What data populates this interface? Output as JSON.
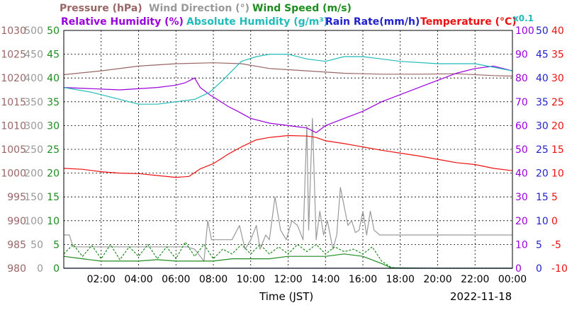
{
  "legend": {
    "row1": [
      {
        "text": "Pressure (hPa)",
        "color": "#996666"
      },
      {
        "text": "Wind Direction (°)",
        "color": "#999999"
      },
      {
        "text": "Wind Speed (m/s)",
        "color": "#1e8c1e"
      }
    ],
    "row2": [
      {
        "text": "Relative Humidity (%)",
        "color": "#9900dd"
      },
      {
        "text": "Absolute Humidity (g/m³)",
        "color": "#22bbbb"
      },
      {
        "text": "Rain Rate(mm/h)",
        "color": "#2222cc"
      },
      {
        "text": "Temperature (°C)",
        "color": "#ee1111"
      }
    ],
    "scale_note": {
      "text": "x0.1",
      "color": "#22bbbb"
    }
  },
  "footer": {
    "xlabel": "Time (JST)",
    "date": "2022-11-18"
  },
  "chart_data": {
    "type": "line",
    "x_ticks": [
      "02:00",
      "04:00",
      "06:00",
      "08:00",
      "10:00",
      "12:00",
      "14:00",
      "16:00",
      "18:00",
      "20:00",
      "22:00",
      "00:00"
    ],
    "x_range_hours": [
      0,
      24
    ],
    "grid": true,
    "axes": {
      "pressure": {
        "ticks": [
          "1030",
          "1025",
          "1020",
          "1015",
          "1010",
          "1005",
          "1000",
          "995",
          "990",
          "985",
          "980"
        ],
        "range": [
          980,
          1030
        ],
        "color": "#996666"
      },
      "wind_direction": {
        "ticks": [
          "500",
          "450",
          "400",
          "350",
          "300",
          "250",
          "200",
          "150",
          "100",
          "50",
          "0"
        ],
        "range": [
          0,
          500
        ],
        "color": "#999999"
      },
      "wind_speed": {
        "ticks": [
          "50",
          "45",
          "40",
          "35",
          "30",
          "25",
          "20",
          "15",
          "10",
          "5",
          "0"
        ],
        "range": [
          0,
          50
        ],
        "color": "#1e8c1e"
      },
      "humidity": {
        "ticks": [
          "100",
          "90",
          "80",
          "70",
          "60",
          "50",
          "40",
          "30",
          "20",
          "10",
          "0"
        ],
        "range": [
          0,
          100
        ],
        "color": "#9900dd"
      },
      "rain_rate": {
        "ticks": [
          "50",
          "45",
          "40",
          "35",
          "30",
          "25",
          "20",
          "15",
          "10",
          "5",
          "0"
        ],
        "range": [
          0,
          50
        ],
        "color": "#2222cc"
      },
      "temperature": {
        "ticks": [
          "40",
          "35",
          "30",
          "25",
          "20",
          "15",
          "10",
          "5",
          "0",
          "-5",
          "-10"
        ],
        "range": [
          -10,
          40
        ],
        "color": "#ee1111"
      }
    },
    "series": [
      {
        "name": "Pressure (hPa)",
        "axis": "pressure",
        "color": "#996666",
        "points": [
          [
            0,
            1020.7
          ],
          [
            2,
            1021.5
          ],
          [
            4,
            1022.5
          ],
          [
            6,
            1023.0
          ],
          [
            8,
            1023.2
          ],
          [
            9.5,
            1023.0
          ],
          [
            11,
            1022.0
          ],
          [
            13,
            1021.5
          ],
          [
            15,
            1021.0
          ],
          [
            17,
            1020.8
          ],
          [
            19,
            1020.8
          ],
          [
            21,
            1020.9
          ],
          [
            23,
            1020.5
          ],
          [
            24,
            1020.4
          ]
        ]
      },
      {
        "name": "Wind Direction (°)",
        "axis": "wind_direction",
        "color": "#999999",
        "points": [
          [
            0,
            70
          ],
          [
            0.3,
            70
          ],
          [
            0.5,
            45
          ],
          [
            2,
            45
          ],
          [
            4,
            45
          ],
          [
            6,
            45
          ],
          [
            6.6,
            45
          ],
          [
            7,
            40
          ],
          [
            7.5,
            15
          ],
          [
            7.7,
            100
          ],
          [
            7.9,
            60
          ],
          [
            8.5,
            60
          ],
          [
            9,
            60
          ],
          [
            9.4,
            90
          ],
          [
            9.7,
            40
          ],
          [
            10.0,
            60
          ],
          [
            10.3,
            90
          ],
          [
            10.5,
            40
          ],
          [
            10.8,
            70
          ],
          [
            11.0,
            60
          ],
          [
            11.3,
            150
          ],
          [
            11.6,
            80
          ],
          [
            11.9,
            60
          ],
          [
            12.2,
            100
          ],
          [
            12.5,
            90
          ],
          [
            12.8,
            60
          ],
          [
            13.0,
            300
          ],
          [
            13.1,
            80
          ],
          [
            13.3,
            315
          ],
          [
            13.5,
            60
          ],
          [
            13.7,
            120
          ],
          [
            13.9,
            70
          ],
          [
            14.1,
            100
          ],
          [
            14.4,
            40
          ],
          [
            14.6,
            70
          ],
          [
            14.8,
            170
          ],
          [
            15.0,
            130
          ],
          [
            15.2,
            90
          ],
          [
            15.4,
            100
          ],
          [
            15.6,
            75
          ],
          [
            15.8,
            80
          ],
          [
            16.0,
            120
          ],
          [
            16.2,
            70
          ],
          [
            16.4,
            120
          ],
          [
            16.6,
            80
          ],
          [
            16.9,
            70
          ],
          [
            17.2,
            70
          ],
          [
            18,
            70
          ],
          [
            20,
            70
          ],
          [
            22,
            70
          ],
          [
            24,
            70
          ]
        ]
      },
      {
        "name": "Wind Speed (m/s)",
        "axis": "wind_speed",
        "color": "#1e8c1e",
        "style": "solid",
        "points": [
          [
            0,
            2.5
          ],
          [
            1,
            2.0
          ],
          [
            2,
            1.5
          ],
          [
            3,
            1.5
          ],
          [
            4,
            1.5
          ],
          [
            5,
            1.8
          ],
          [
            6,
            1.5
          ],
          [
            7,
            1.5
          ],
          [
            8,
            1.5
          ],
          [
            9,
            2
          ],
          [
            10,
            2
          ],
          [
            11,
            2
          ],
          [
            12,
            2.5
          ],
          [
            13,
            2.5
          ],
          [
            14,
            2.5
          ],
          [
            15,
            3
          ],
          [
            16,
            2.5
          ],
          [
            17,
            1.0
          ],
          [
            17.5,
            0.1
          ],
          [
            20,
            0
          ],
          [
            24,
            0
          ]
        ]
      },
      {
        "name": "Wind Speed gust (m/s)",
        "axis": "wind_speed",
        "color": "#1e8c1e",
        "style": "dashed",
        "points": [
          [
            0,
            3
          ],
          [
            0.5,
            5
          ],
          [
            1,
            2.5
          ],
          [
            1.5,
            4.8
          ],
          [
            2,
            2
          ],
          [
            2.5,
            5
          ],
          [
            3,
            1.8
          ],
          [
            3.5,
            4.5
          ],
          [
            4,
            2.5
          ],
          [
            4.5,
            5
          ],
          [
            5,
            2
          ],
          [
            5.5,
            4.5
          ],
          [
            6,
            2
          ],
          [
            6.5,
            5.5
          ],
          [
            7,
            2.5
          ],
          [
            7.5,
            5
          ],
          [
            8,
            2
          ],
          [
            8.5,
            4
          ],
          [
            9,
            3
          ],
          [
            9.5,
            5
          ],
          [
            10,
            3
          ],
          [
            10.5,
            5
          ],
          [
            11,
            3
          ],
          [
            11.5,
            4.5
          ],
          [
            12,
            3
          ],
          [
            12.5,
            5
          ],
          [
            13,
            3.5
          ],
          [
            13.5,
            5
          ],
          [
            14,
            3
          ],
          [
            14.5,
            4.5
          ],
          [
            15,
            3.5
          ],
          [
            15.5,
            4
          ],
          [
            16,
            3
          ],
          [
            16.5,
            4.5
          ],
          [
            17,
            1.5
          ],
          [
            17.5,
            0.2
          ],
          [
            18,
            0
          ],
          [
            24,
            0
          ]
        ]
      },
      {
        "name": "Relative Humidity (%)",
        "axis": "humidity",
        "color": "#9900dd",
        "points": [
          [
            0,
            76
          ],
          [
            3,
            75
          ],
          [
            5,
            76
          ],
          [
            6,
            77
          ],
          [
            6.5,
            78
          ],
          [
            7,
            80
          ],
          [
            7.3,
            76
          ],
          [
            7.8,
            73
          ],
          [
            8.2,
            71
          ],
          [
            8.8,
            68
          ],
          [
            9.3,
            66
          ],
          [
            10.0,
            63
          ],
          [
            11.0,
            61
          ],
          [
            12,
            60
          ],
          [
            13,
            59
          ],
          [
            13.5,
            57
          ],
          [
            14,
            60
          ],
          [
            15,
            63
          ],
          [
            16,
            66
          ],
          [
            17,
            70
          ],
          [
            18,
            73
          ],
          [
            19,
            76
          ],
          [
            20,
            79
          ],
          [
            21,
            82
          ],
          [
            22,
            84
          ],
          [
            23,
            85
          ],
          [
            24,
            83
          ]
        ]
      },
      {
        "name": "Absolute Humidity (g/m³)",
        "axis": "humidity",
        "color": "#22bbbb",
        "points": [
          [
            0,
            76
          ],
          [
            1.5,
            74
          ],
          [
            3,
            71
          ],
          [
            4,
            69
          ],
          [
            5,
            69
          ],
          [
            6,
            70
          ],
          [
            7,
            71
          ],
          [
            7.8,
            74
          ],
          [
            8.5,
            79
          ],
          [
            9.0,
            83
          ],
          [
            9.5,
            87
          ],
          [
            10.3,
            89
          ],
          [
            11,
            90
          ],
          [
            12,
            90
          ],
          [
            13,
            88
          ],
          [
            14,
            87
          ],
          [
            15,
            89
          ],
          [
            16,
            89
          ],
          [
            17,
            88
          ],
          [
            18,
            87
          ],
          [
            20,
            86
          ],
          [
            22,
            86
          ],
          [
            24,
            83
          ]
        ]
      },
      {
        "name": "Rain Rate(mm/h)",
        "axis": "rain_rate",
        "color": "#2222cc",
        "points": [
          [
            0,
            0
          ],
          [
            24,
            0
          ]
        ]
      },
      {
        "name": "Temperature (°C)",
        "axis": "temperature",
        "color": "#ee1111",
        "points": [
          [
            0,
            11.0
          ],
          [
            1,
            10.8
          ],
          [
            2,
            10.3
          ],
          [
            3,
            10.0
          ],
          [
            4,
            9.9
          ],
          [
            5,
            9.5
          ],
          [
            6,
            9.1
          ],
          [
            6.7,
            9.3
          ],
          [
            7.3,
            10.9
          ],
          [
            8,
            12.0
          ],
          [
            8.8,
            14.0
          ],
          [
            9.5,
            15.5
          ],
          [
            10.3,
            17.0
          ],
          [
            11,
            17.5
          ],
          [
            12,
            17.9
          ],
          [
            13,
            17.8
          ],
          [
            13.5,
            17.5
          ],
          [
            14,
            16.8
          ],
          [
            15,
            16.2
          ],
          [
            16,
            15.5
          ],
          [
            17,
            14.8
          ],
          [
            18,
            14.2
          ],
          [
            19,
            13.6
          ],
          [
            20,
            12.9
          ],
          [
            21,
            12.2
          ],
          [
            22,
            11.8
          ],
          [
            23,
            11.0
          ],
          [
            24,
            10.5
          ]
        ]
      }
    ]
  }
}
